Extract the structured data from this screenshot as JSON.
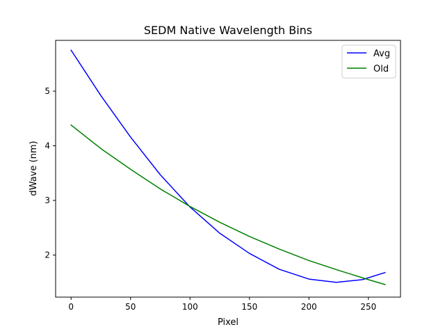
{
  "chart_data": {
    "type": "line",
    "title": "SEDM Native Wavelength Bins",
    "xlabel": "Pixel",
    "ylabel": "dWave (nm)",
    "xlim": [
      -13,
      277
    ],
    "ylim": [
      1.23,
      5.93
    ],
    "xticks": [
      0,
      50,
      100,
      150,
      200,
      250
    ],
    "yticks": [
      2,
      3,
      4,
      5
    ],
    "xtick_labels": [
      "0",
      "50",
      "100",
      "150",
      "200",
      "250"
    ],
    "ytick_labels": [
      "2",
      "3",
      "4",
      "5"
    ],
    "grid": false,
    "legend_position": "top-right",
    "series": [
      {
        "name": "Avg",
        "color": "#0000ff",
        "x": [
          0,
          25,
          50,
          75,
          100,
          125,
          150,
          175,
          200,
          223,
          245,
          264
        ],
        "y": [
          5.75,
          4.92,
          4.16,
          3.47,
          2.88,
          2.4,
          2.03,
          1.74,
          1.56,
          1.5,
          1.55,
          1.68
        ]
      },
      {
        "name": "Old",
        "color": "#008000",
        "x": [
          0,
          25,
          50,
          75,
          100,
          125,
          150,
          175,
          200,
          225,
          250,
          264
        ],
        "y": [
          4.38,
          3.95,
          3.57,
          3.21,
          2.89,
          2.6,
          2.34,
          2.11,
          1.9,
          1.72,
          1.55,
          1.46
        ]
      }
    ]
  }
}
